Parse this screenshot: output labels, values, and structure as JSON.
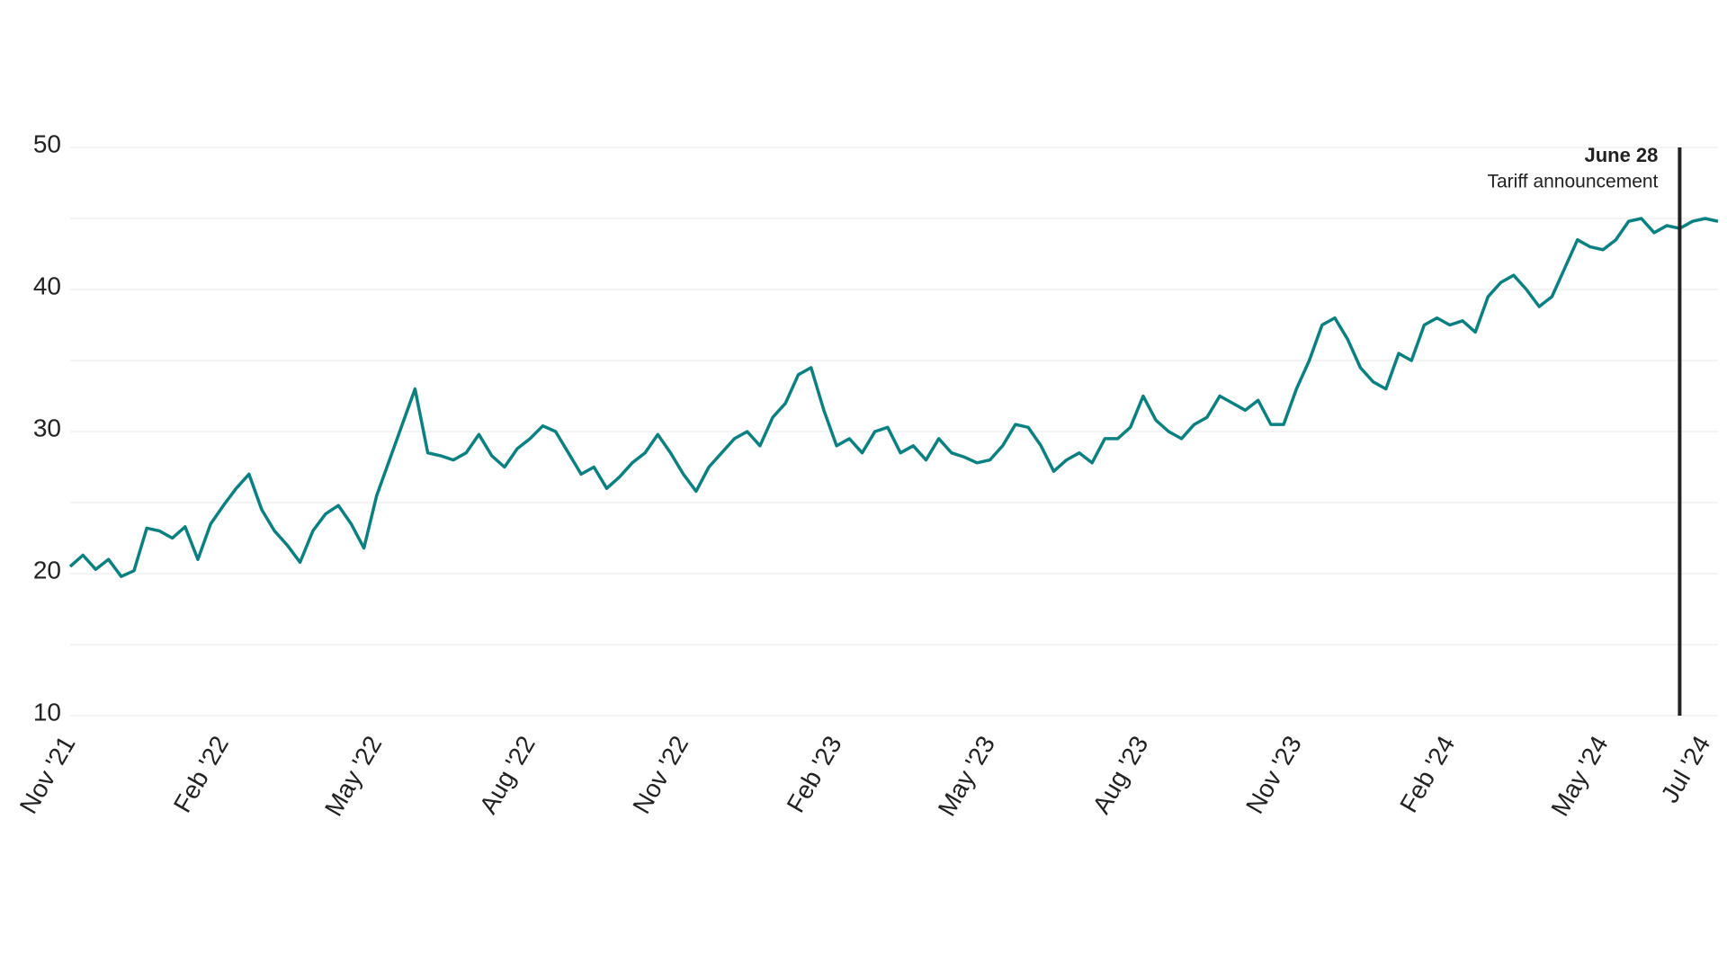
{
  "chart_data": {
    "type": "line",
    "color": "#0b8080",
    "categories": [
      "Nov '21",
      null,
      null,
      null,
      null,
      null,
      null,
      null,
      null,
      null,
      null,
      null,
      "Feb '22",
      null,
      null,
      null,
      null,
      null,
      null,
      null,
      null,
      null,
      null,
      null,
      "May '22",
      null,
      null,
      null,
      null,
      null,
      null,
      null,
      null,
      null,
      null,
      null,
      "Aug '22",
      null,
      null,
      null,
      null,
      null,
      null,
      null,
      null,
      null,
      null,
      null,
      "Nov '22",
      null,
      null,
      null,
      null,
      null,
      null,
      null,
      null,
      null,
      null,
      null,
      "Feb '23",
      null,
      null,
      null,
      null,
      null,
      null,
      null,
      null,
      null,
      null,
      null,
      "May '23",
      null,
      null,
      null,
      null,
      null,
      null,
      null,
      null,
      null,
      null,
      null,
      "Aug '23",
      null,
      null,
      null,
      null,
      null,
      null,
      null,
      null,
      null,
      null,
      null,
      "Nov '23",
      null,
      null,
      null,
      null,
      null,
      null,
      null,
      null,
      null,
      null,
      null,
      "Feb '24",
      null,
      null,
      null,
      null,
      null,
      null,
      null,
      null,
      null,
      null,
      null,
      "May '24",
      null,
      null,
      null,
      null,
      null,
      null,
      null,
      "Jul '24",
      null
    ],
    "values": [
      20.5,
      21.3,
      20.3,
      21.0,
      19.8,
      20.2,
      23.2,
      23.0,
      22.5,
      23.3,
      21.0,
      23.5,
      24.8,
      26.0,
      27.0,
      24.5,
      23.0,
      22.0,
      20.8,
      23.0,
      24.2,
      24.8,
      23.5,
      21.8,
      25.5,
      28.0,
      30.5,
      33.0,
      28.5,
      28.3,
      28.0,
      28.5,
      29.8,
      28.3,
      27.5,
      28.8,
      29.5,
      30.4,
      30.0,
      28.5,
      27.0,
      27.5,
      26.0,
      26.8,
      27.8,
      28.5,
      29.8,
      28.5,
      27.0,
      25.8,
      27.5,
      28.5,
      29.5,
      30.0,
      29.0,
      31.0,
      32.0,
      34.0,
      34.5,
      31.5,
      29.0,
      29.5,
      28.5,
      30.0,
      30.3,
      28.5,
      29.0,
      28.0,
      29.5,
      28.5,
      28.2,
      27.8,
      28.0,
      29.0,
      30.5,
      30.3,
      29.0,
      27.2,
      28.0,
      28.5,
      27.8,
      29.5,
      29.5,
      30.3,
      32.5,
      30.8,
      30.0,
      29.5,
      30.5,
      31.0,
      32.5,
      32.0,
      31.5,
      32.2,
      30.5,
      30.5,
      33.0,
      35.0,
      37.5,
      38.0,
      36.5,
      34.5,
      33.5,
      33.0,
      35.5,
      35.0,
      37.5,
      38.0,
      37.5,
      37.8,
      37.0,
      39.5,
      40.5,
      41.0,
      40.0,
      38.8,
      39.5,
      41.5,
      43.5,
      43.0,
      42.8,
      43.5,
      44.8,
      45.0,
      44.0,
      44.5,
      44.3,
      44.8,
      45.0,
      44.8
    ],
    "ylim": [
      10,
      50
    ],
    "yticks": [
      10,
      20,
      30,
      40,
      50
    ],
    "minor_yticks": [
      15,
      25,
      35,
      45
    ],
    "grid": true,
    "annotation": {
      "index": 126,
      "label": "June 28",
      "text": "Tariff announcement"
    }
  }
}
